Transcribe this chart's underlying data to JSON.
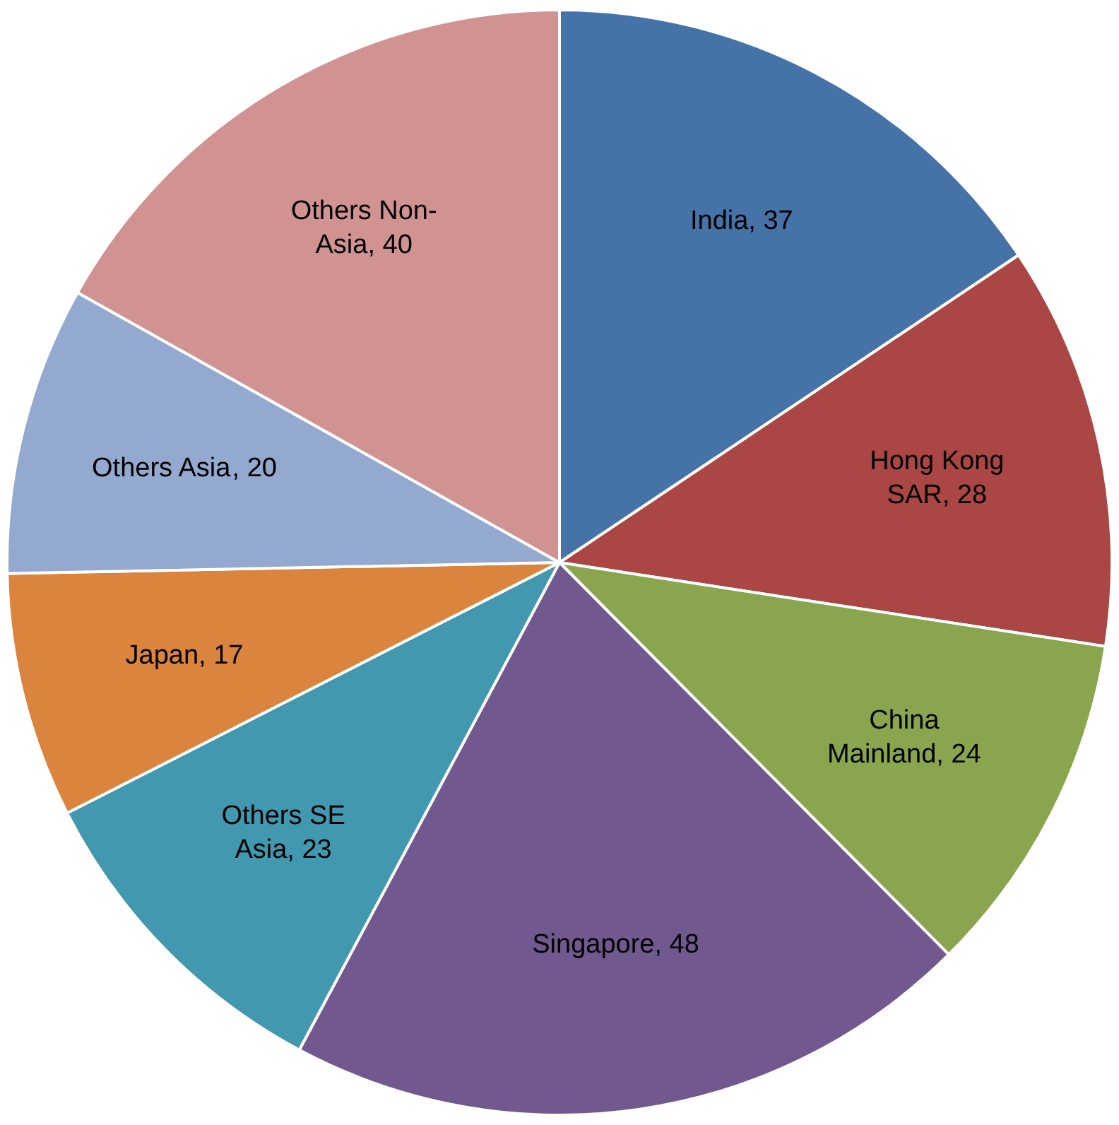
{
  "chart_data": {
    "type": "pie",
    "categories": [
      "India",
      "Hong Kong SAR",
      "China Mainland",
      "Singapore",
      "Others SE Asia",
      "Japan",
      "Others Asia",
      "Others Non-Asia"
    ],
    "values": [
      37,
      28,
      24,
      48,
      23,
      17,
      20,
      40
    ],
    "colors": [
      "#4572a7",
      "#aa4643",
      "#89a54e",
      "#71588f",
      "#4198af",
      "#db843d",
      "#93a9cf",
      "#d19392"
    ],
    "value_labels": [
      ", 37",
      ", 28",
      ", 24",
      ", 48",
      ", 23",
      ", 17",
      ", 20",
      ", 40"
    ],
    "legend": false
  }
}
